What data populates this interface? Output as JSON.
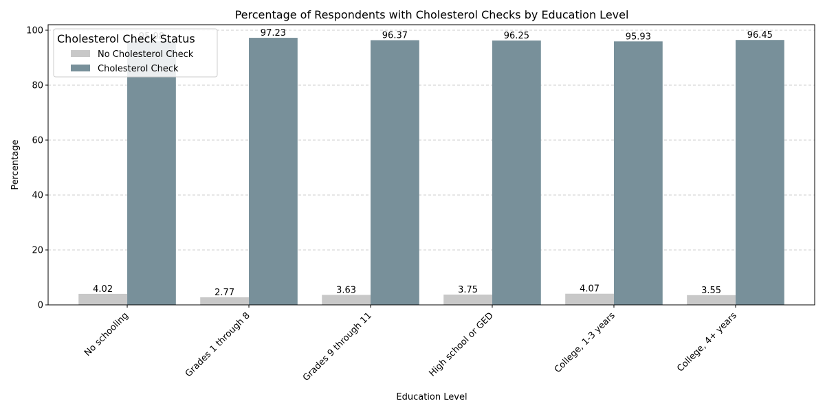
{
  "chart_data": {
    "type": "bar",
    "title": "Percentage of Respondents with Cholesterol Checks by Education Level",
    "xlabel": "Education Level",
    "ylabel": "Percentage",
    "ylim": [
      0,
      102
    ],
    "yticks": [
      0,
      20,
      40,
      60,
      80,
      100
    ],
    "grid": "y, dashed",
    "categories": [
      "No schooling",
      "Grades 1 through 8",
      "Grades 9 through 11",
      "High school or GED",
      "College, 1-3 years",
      "College, 4+ years"
    ],
    "legend": {
      "title": "Cholesterol Check Status",
      "placement": "upper-left"
    },
    "series": [
      {
        "name": "No Cholesterol Check",
        "color": "#c8c8c8",
        "values": [
          4.02,
          2.77,
          3.63,
          3.75,
          4.07,
          3.55
        ]
      },
      {
        "name": "Cholesterol Check",
        "color": "#78909a",
        "values": [
          95.98,
          97.23,
          96.37,
          96.25,
          95.93,
          96.45
        ]
      }
    ],
    "data_labels": [
      [
        "4.02",
        "2.77",
        "3.63",
        "3.75",
        "4.07",
        "3.55"
      ],
      [
        "95.98",
        "97.23",
        "96.37",
        "96.25",
        "95.93",
        "96.45"
      ]
    ]
  }
}
